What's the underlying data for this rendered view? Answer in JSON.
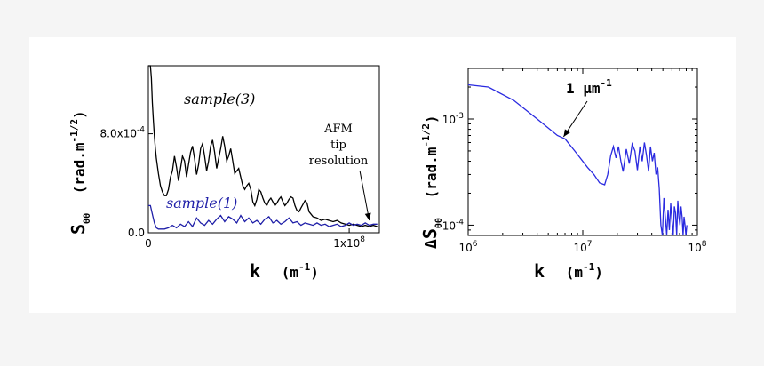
{
  "chart_data": [
    {
      "type": "line",
      "xlabel": "k",
      "xunit": "(m",
      "xunit_exp": "-1",
      "xunit_close": ")",
      "ylabel_main": "S",
      "ylabel_sub": "θθ",
      "ylabel_unit": "(rad.m",
      "ylabel_exp": "-1/2",
      "ylabel_close": ")",
      "xlim": [
        0,
        115000000
      ],
      "ylim": [
        0,
        0.00135
      ],
      "xticks": [
        {
          "value": 0,
          "label": "0"
        },
        {
          "value": 100000000,
          "label": "1x10",
          "exp": "8"
        }
      ],
      "yticks": [
        {
          "value": 0,
          "label": "0.0"
        },
        {
          "value": 0.0008,
          "label": "8.0x10",
          "exp": "-4"
        }
      ],
      "series": [
        {
          "name": "sample(3)",
          "color": "#000000",
          "x": [
            0,
            1000000,
            1500000,
            2000000,
            2500000,
            3000000,
            3500000,
            4000000,
            5000000,
            6000000,
            7000000,
            8000000,
            9000000,
            10000000,
            11000000,
            12000000,
            13000000,
            14000000,
            15000000,
            16000000,
            17000000,
            18000000,
            19000000,
            20000000,
            21000000,
            22000000,
            23000000,
            24000000,
            25000000,
            26000000,
            27000000,
            28000000,
            29000000,
            30000000,
            31000000,
            32000000,
            33000000,
            34000000,
            35000000,
            36000000,
            37000000,
            38000000,
            39000000,
            40000000,
            41000000,
            42000000,
            43000000,
            44000000,
            45000000,
            46000000,
            47000000,
            48000000,
            49000000,
            50000000,
            51000000,
            52000000,
            53000000,
            54000000,
            55000000,
            56000000,
            57000000,
            58000000,
            59000000,
            60000000,
            61000000,
            62000000,
            63000000,
            64000000,
            65000000,
            66000000,
            67000000,
            68000000,
            69000000,
            70000000,
            71000000,
            72000000,
            73000000,
            74000000,
            75000000,
            76000000,
            77000000,
            78000000,
            79000000,
            80000000,
            82000000,
            84000000,
            86000000,
            88000000,
            90000000,
            92000000,
            94000000,
            96000000,
            98000000,
            100000000,
            102000000,
            104000000,
            106000000,
            108000000,
            110000000,
            112000000,
            114000000
          ],
          "y": [
            0.00135,
            0.00135,
            0.00125,
            0.00105,
            0.0009,
            0.00078,
            0.00068,
            0.0006,
            0.00048,
            0.00038,
            0.00033,
            0.0003,
            0.0003,
            0.00035,
            0.00045,
            0.0005,
            0.00062,
            0.00053,
            0.00042,
            0.00052,
            0.00062,
            0.00058,
            0.00045,
            0.00055,
            0.00065,
            0.0007,
            0.0006,
            0.00047,
            0.00055,
            0.00068,
            0.00072,
            0.00062,
            0.0005,
            0.00058,
            0.0007,
            0.00075,
            0.00065,
            0.00052,
            0.0006,
            0.00068,
            0.00078,
            0.0007,
            0.00058,
            0.00062,
            0.00068,
            0.00058,
            0.00048,
            0.0005,
            0.00052,
            0.00045,
            0.00038,
            0.00035,
            0.00038,
            0.0004,
            0.00035,
            0.00025,
            0.00022,
            0.00027,
            0.00035,
            0.00033,
            0.00028,
            0.00024,
            0.00022,
            0.00026,
            0.00028,
            0.00025,
            0.00022,
            0.00024,
            0.00027,
            0.00029,
            0.00025,
            0.00022,
            0.00024,
            0.00027,
            0.00029,
            0.00028,
            0.00022,
            0.00018,
            0.00017,
            0.0002,
            0.00023,
            0.00026,
            0.00024,
            0.00017,
            0.00013,
            0.00012,
            0.0001,
            0.00011,
            0.0001,
            9e-05,
            0.0001,
            8e-05,
            7e-05,
            6e-05,
            7e-05,
            6e-05,
            5e-05,
            6e-05,
            5e-05,
            6e-05,
            5e-05
          ]
        },
        {
          "name": "sample(1)",
          "color": "#1f1fa8",
          "x": [
            0,
            1000000,
            2000000,
            3000000,
            4000000,
            5000000,
            6000000,
            8000000,
            10000000,
            12000000,
            14000000,
            16000000,
            18000000,
            20000000,
            22000000,
            24000000,
            26000000,
            28000000,
            30000000,
            32000000,
            34000000,
            36000000,
            38000000,
            40000000,
            42000000,
            44000000,
            46000000,
            48000000,
            50000000,
            52000000,
            54000000,
            56000000,
            58000000,
            60000000,
            62000000,
            64000000,
            66000000,
            68000000,
            70000000,
            72000000,
            74000000,
            76000000,
            78000000,
            80000000,
            82000000,
            84000000,
            86000000,
            88000000,
            90000000,
            92000000,
            94000000,
            96000000,
            98000000,
            100000000,
            102000000,
            104000000,
            106000000,
            108000000,
            110000000,
            112000000,
            114000000
          ],
          "y": [
            0.00022,
            0.00022,
            0.00015,
            8e-05,
            4e-05,
            3e-05,
            3e-05,
            3e-05,
            4e-05,
            6e-05,
            4e-05,
            7e-05,
            5e-05,
            9e-05,
            5e-05,
            0.00012,
            8e-05,
            6e-05,
            0.0001,
            7e-05,
            0.00011,
            0.00014,
            9e-05,
            0.00013,
            0.00011,
            8e-05,
            0.00014,
            9e-05,
            0.00012,
            8e-05,
            0.0001,
            7e-05,
            0.00011,
            0.00013,
            8e-05,
            0.0001,
            7e-05,
            9e-05,
            0.00012,
            8e-05,
            9e-05,
            6e-05,
            8e-05,
            7e-05,
            6e-05,
            8e-05,
            6e-05,
            7e-05,
            5e-05,
            6e-05,
            7e-05,
            5e-05,
            6e-05,
            8e-05,
            6e-05,
            7e-05,
            6e-05,
            8e-05,
            6e-05,
            7e-05,
            7e-05
          ]
        }
      ],
      "annotations": [
        {
          "label": "sample(3)"
        },
        {
          "label": "sample(1)"
        },
        {
          "lines": [
            "AFM",
            "tip",
            "resolution"
          ],
          "arrow_to": [
            110000000,
            0.0001
          ]
        }
      ]
    },
    {
      "type": "line",
      "xscale": "log",
      "yscale": "log",
      "xlabel": "k",
      "xunit": "(m",
      "xunit_exp": "-1",
      "xunit_close": ")",
      "ylabel_prefix": "Δ",
      "ylabel_main": "S",
      "ylabel_sub": "θθ",
      "ylabel_unit": "(rad.m",
      "ylabel_exp": "-1/2",
      "ylabel_close": ")",
      "xlim": [
        1000000,
        100000000
      ],
      "ylim": [
        8e-05,
        0.003
      ],
      "xticks": [
        {
          "value": 1000000,
          "label": "10",
          "exp": "6"
        },
        {
          "value": 10000000,
          "label": "10",
          "exp": "7"
        },
        {
          "value": 100000000,
          "label": "10",
          "exp": "8"
        }
      ],
      "yticks": [
        {
          "value": 0.001,
          "label": "10",
          "exp": "-3"
        },
        {
          "value": 0.0001,
          "label": "10",
          "exp": "-4"
        }
      ],
      "series": [
        {
          "name": "",
          "color": "#2a2ae0",
          "x": [
            1000000,
            1500000,
            2500000,
            4000000,
            6000000,
            7000000,
            8500000,
            11000000,
            12500000,
            14000000,
            15500000,
            16500000,
            17500000,
            18500000,
            19500000,
            20500000,
            21500000,
            22500000,
            24000000,
            25500000,
            27000000,
            28500000,
            30000000,
            31500000,
            33000000,
            34500000,
            36000000,
            37500000,
            39000000,
            40500000,
            42000000,
            43500000,
            45000000,
            46500000,
            48000000,
            49500000,
            51000000,
            52500000,
            54000000,
            55500000,
            57000000,
            58500000,
            60000000,
            61500000,
            63000000,
            64500000,
            66000000,
            67500000,
            69000000,
            70500000,
            72000000,
            73500000,
            75000000,
            76500000,
            78000000,
            79500000,
            81000000
          ],
          "y": [
            0.0021,
            0.002,
            0.0015,
            0.001,
            0.0007,
            0.00065,
            0.0005,
            0.00035,
            0.0003,
            0.00025,
            0.00024,
            0.0003,
            0.00045,
            0.00055,
            0.00043,
            0.00055,
            0.0004,
            0.00032,
            0.00052,
            0.00038,
            0.00058,
            0.0005,
            0.00033,
            0.00055,
            0.0004,
            0.0006,
            0.00045,
            0.00032,
            0.00055,
            0.0004,
            0.00048,
            0.0003,
            0.00035,
            0.00022,
            0.0001,
            8e-05,
            0.00018,
            0.00012,
            8e-05,
            0.00014,
            9e-05,
            0.00016,
            0.00011,
            8e-05,
            0.00015,
            0.00013,
            8e-05,
            0.00017,
            0.00012,
            0.0001,
            0.00015,
            0.00012,
            8e-05,
            0.00012,
            0.0001,
            8e-05,
            0.0001
          ]
        }
      ],
      "annotations": [
        {
          "label": "1 μm",
          "exp": "-1",
          "arrow_to": [
            6800000,
            0.00068
          ]
        }
      ]
    }
  ]
}
